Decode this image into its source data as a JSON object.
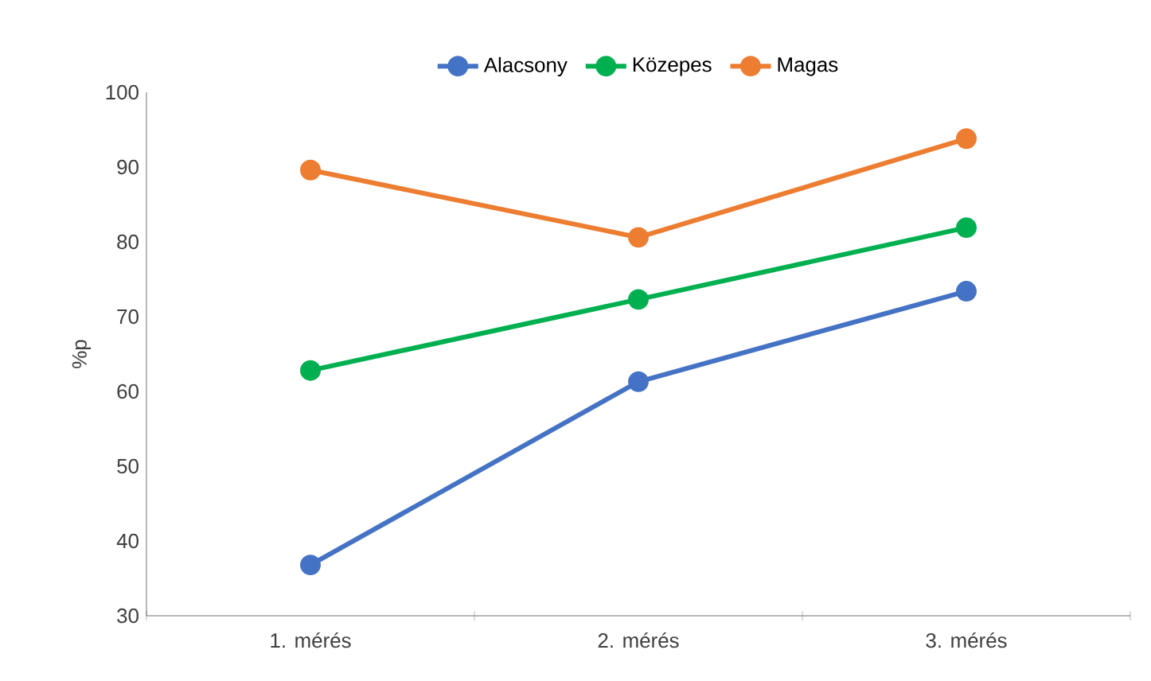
{
  "chart_data": {
    "type": "line",
    "ylabel": "%p",
    "categories": [
      "1. mérés",
      "2. mérés",
      "3. mérés"
    ],
    "series": [
      {
        "name": "Alacsony",
        "color": "#4472c4",
        "values": [
          36.8,
          61.3,
          73.4
        ]
      },
      {
        "name": "Közepes",
        "color": "#00b050",
        "values": [
          62.8,
          72.3,
          81.9
        ]
      },
      {
        "name": "Magas",
        "color": "#ed7d31",
        "values": [
          89.6,
          80.6,
          93.8
        ]
      }
    ],
    "ylim": [
      30,
      100
    ],
    "yticks": [
      30,
      40,
      50,
      60,
      70,
      80,
      90,
      100
    ],
    "grid": false,
    "legend": "top",
    "marker": "circle",
    "line_style": "solid"
  }
}
